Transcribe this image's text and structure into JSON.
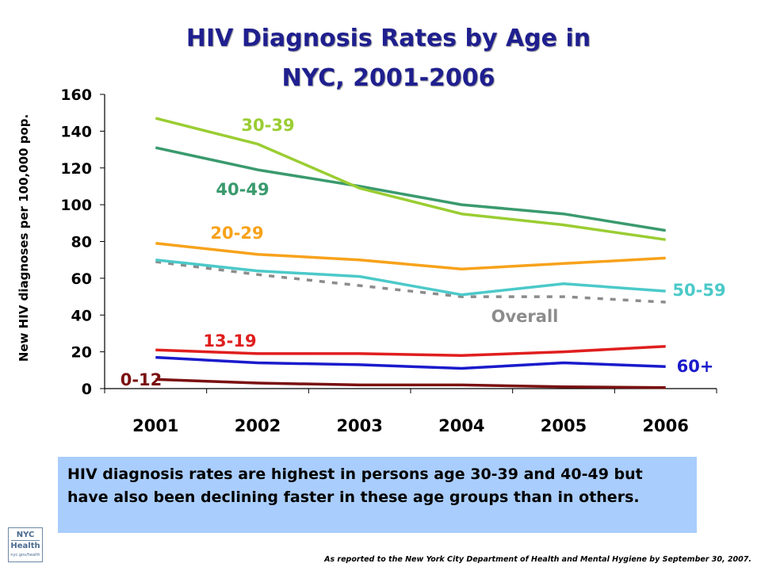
{
  "title": {
    "line1": "HIV Diagnosis Rates by Age in",
    "line2": "NYC, 2001-2006"
  },
  "logo": {
    "line1": "NYC",
    "line2": "Health",
    "line3": "nyc.gov/health"
  },
  "note": "HIV diagnosis rates are highest in persons age 30-39 and 40-49 but have also been declining faster in these age groups than in others.",
  "source": "As reported to the New York City Department of Health and Mental Hygiene by September 30, 2007.",
  "chart_data": {
    "type": "line",
    "title": "HIV Diagnosis Rates by Age in NYC, 2001-2006",
    "xlabel": "",
    "ylabel": "New HIV diagnoses per 100,000 pop.",
    "x": [
      "2001",
      "2002",
      "2003",
      "2004",
      "2005",
      "2006"
    ],
    "ylim": [
      0,
      160
    ],
    "yticks": [
      0,
      20,
      40,
      60,
      80,
      100,
      120,
      140,
      160
    ],
    "grid": false,
    "legend": "inline series labels",
    "series": [
      {
        "name": "30-39",
        "color": "#9acd32",
        "dashed": false,
        "values": [
          147,
          133,
          109,
          95,
          89,
          81
        ]
      },
      {
        "name": "40-49",
        "color": "#3a9a6e",
        "dashed": false,
        "values": [
          131,
          119,
          110,
          100,
          95,
          86
        ]
      },
      {
        "name": "20-29",
        "color": "#f7a21b",
        "dashed": false,
        "values": [
          79,
          73,
          70,
          65,
          68,
          71
        ]
      },
      {
        "name": "50-59",
        "color": "#4cc9c9",
        "dashed": false,
        "values": [
          70,
          64,
          61,
          51,
          57,
          53
        ]
      },
      {
        "name": "Overall",
        "color": "#8c8c8c",
        "dashed": true,
        "values": [
          69,
          62,
          56,
          50,
          50,
          47
        ]
      },
      {
        "name": "13-19",
        "color": "#e01e1e",
        "dashed": false,
        "values": [
          21,
          19,
          19,
          18,
          20,
          23
        ]
      },
      {
        "name": "60+",
        "color": "#1a1acc",
        "dashed": false,
        "values": [
          17,
          14,
          13,
          11,
          14,
          12
        ]
      },
      {
        "name": "0-12",
        "color": "#7a1010",
        "dashed": false,
        "values": [
          5,
          3,
          2,
          2,
          1,
          0.5
        ]
      }
    ]
  }
}
